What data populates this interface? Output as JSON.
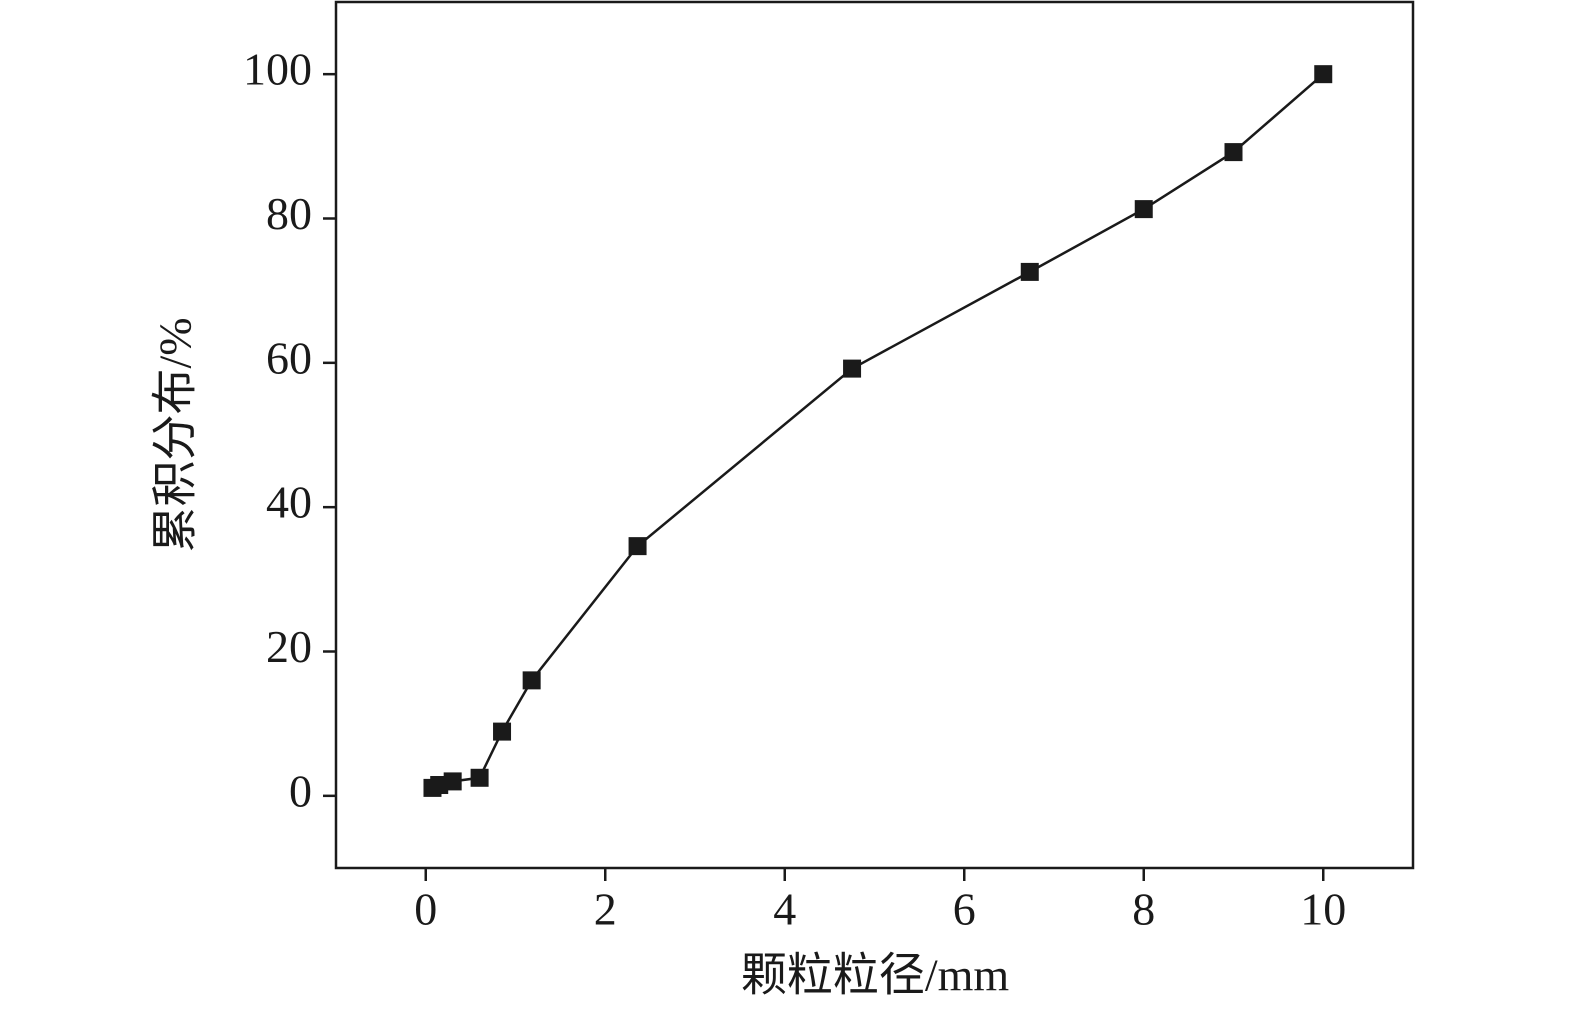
{
  "chart_data": {
    "type": "line",
    "x_label": "颗粒粒径/mm",
    "y_label": "累积分布/%",
    "x": [
      0.075,
      0.15,
      0.3,
      0.6,
      0.85,
      1.18,
      2.36,
      4.75,
      6.73,
      8.0,
      9.0,
      10.0
    ],
    "series": [
      {
        "color": "#1a1a1a",
        "values": [
          1.1,
          1.5,
          2.0,
          2.5,
          8.9,
          16.0,
          34.6,
          59.2,
          72.6,
          81.3,
          89.2,
          100.0
        ]
      }
    ],
    "xlim": [
      -1,
      11
    ],
    "ylim": [
      -10,
      110
    ],
    "xticks": [
      0,
      2,
      4,
      6,
      8,
      10
    ],
    "yticks": [
      0,
      20,
      40,
      60,
      80,
      100
    ],
    "marker": "square"
  }
}
